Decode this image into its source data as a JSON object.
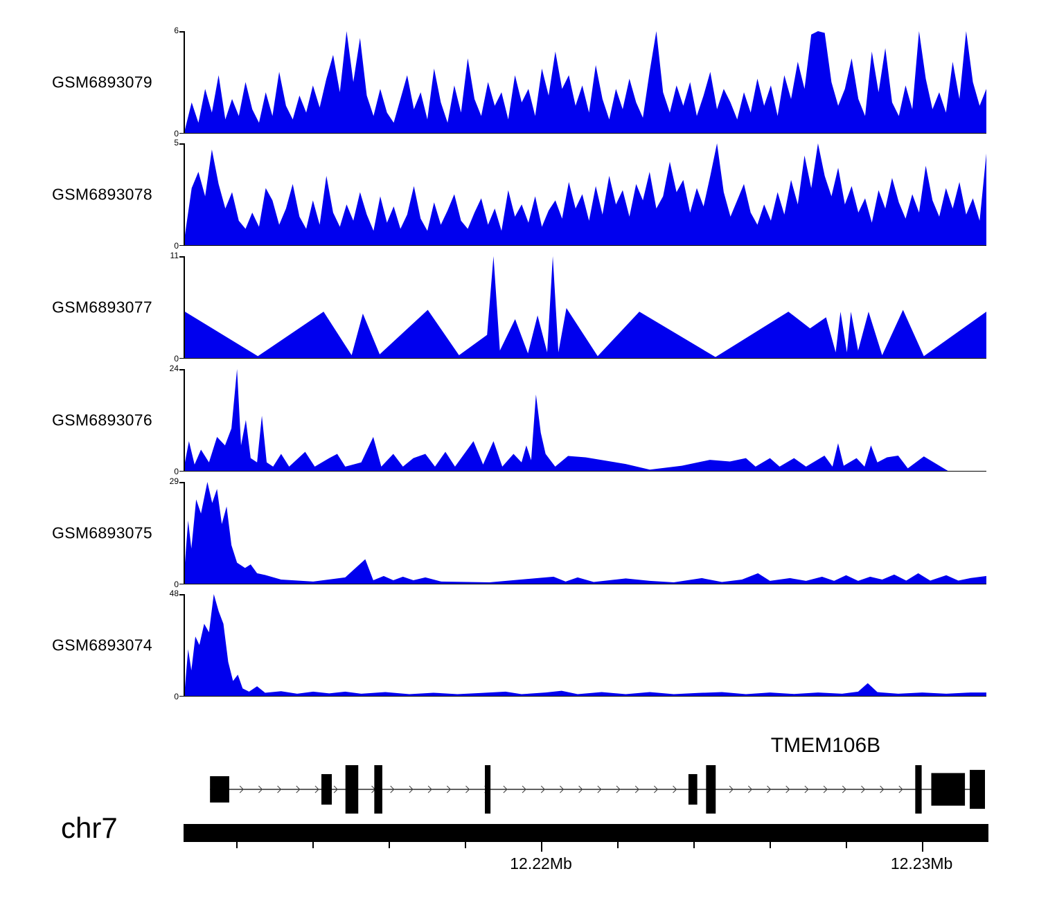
{
  "style": {
    "fill_color": "#0000EE",
    "axis_color": "#000000",
    "gene_color": "#000000",
    "intron_arrow_color": "#444444",
    "background": "#ffffff"
  },
  "chart_data": {
    "type": "area",
    "title": "",
    "xlabel": "",
    "ylabel": "",
    "legend": false,
    "grid": false,
    "region": {
      "chromosome": "chr7",
      "x_range_mb": [
        12.211,
        12.232
      ],
      "ticks": [
        {
          "pos": 0.066
        },
        {
          "pos": 0.161
        },
        {
          "pos": 0.256
        },
        {
          "pos": 0.351
        },
        {
          "pos": 0.446,
          "label": "12.22Mb"
        },
        {
          "pos": 0.541
        },
        {
          "pos": 0.636
        },
        {
          "pos": 0.731
        },
        {
          "pos": 0.826
        },
        {
          "pos": 0.921,
          "label": "12.23Mb"
        }
      ]
    },
    "tracks": [
      {
        "label": "GSM6893079",
        "ymin": 0,
        "ymax": 6,
        "values": [
          0.2,
          1.8,
          0.6,
          2.6,
          1.2,
          3.4,
          0.8,
          2.0,
          1.0,
          3.0,
          1.4,
          0.6,
          2.4,
          1.0,
          3.6,
          1.6,
          0.8,
          2.2,
          1.2,
          2.8,
          1.5,
          3.2,
          4.6,
          2.4,
          6.0,
          3.0,
          5.6,
          2.2,
          1.0,
          2.6,
          1.2,
          0.6,
          2.0,
          3.4,
          1.4,
          2.4,
          0.8,
          3.8,
          1.8,
          0.6,
          2.8,
          1.2,
          4.4,
          2.0,
          1.0,
          3.0,
          1.6,
          2.4,
          0.8,
          3.4,
          1.8,
          2.6,
          1.0,
          3.8,
          2.2,
          4.8,
          2.6,
          3.4,
          1.6,
          2.8,
          1.2,
          4.0,
          2.0,
          0.8,
          2.6,
          1.4,
          3.2,
          1.8,
          0.9,
          3.6,
          6.0,
          2.4,
          1.2,
          2.8,
          1.6,
          3.0,
          1.0,
          2.2,
          3.6,
          1.4,
          2.6,
          1.8,
          0.8,
          2.4,
          1.2,
          3.2,
          1.6,
          2.8,
          1.0,
          3.4,
          2.0,
          4.2,
          2.6,
          5.8,
          6.0,
          5.9,
          3.0,
          1.6,
          2.6,
          4.4,
          2.0,
          1.0,
          4.8,
          2.4,
          5.0,
          1.8,
          1.0,
          2.8,
          1.4,
          6.0,
          3.2,
          1.4,
          2.4,
          1.2,
          4.2,
          2.0,
          6.0,
          3.0,
          1.6,
          2.6
        ]
      },
      {
        "label": "GSM6893078",
        "ymin": 0,
        "ymax": 5,
        "values": [
          0.5,
          2.8,
          3.6,
          2.4,
          4.7,
          3.0,
          1.8,
          2.6,
          1.2,
          0.8,
          1.6,
          0.9,
          2.8,
          2.2,
          1.0,
          1.8,
          3.0,
          1.4,
          0.8,
          2.2,
          1.0,
          3.4,
          1.6,
          0.9,
          2.0,
          1.2,
          2.6,
          1.5,
          0.7,
          2.4,
          1.1,
          1.9,
          0.8,
          1.5,
          2.9,
          1.3,
          0.7,
          2.1,
          1.0,
          1.7,
          2.5,
          1.2,
          0.8,
          1.6,
          2.3,
          1.0,
          1.8,
          0.7,
          2.7,
          1.4,
          2.0,
          1.1,
          2.4,
          0.9,
          1.7,
          2.2,
          1.3,
          3.1,
          1.8,
          2.5,
          1.2,
          2.9,
          1.5,
          3.4,
          2.0,
          2.7,
          1.4,
          3.0,
          2.2,
          3.6,
          1.8,
          2.4,
          4.1,
          2.6,
          3.2,
          1.6,
          2.8,
          1.9,
          3.4,
          5.0,
          2.6,
          1.4,
          2.2,
          3.0,
          1.6,
          1.0,
          2.0,
          1.2,
          2.6,
          1.5,
          3.2,
          2.0,
          4.4,
          2.8,
          5.0,
          3.4,
          2.4,
          3.8,
          2.0,
          2.9,
          1.6,
          2.3,
          1.1,
          2.7,
          1.8,
          3.3,
          2.1,
          1.3,
          2.5,
          1.6,
          3.9,
          2.2,
          1.4,
          2.8,
          1.8,
          3.1,
          1.5,
          2.3,
          1.2,
          4.5
        ]
      },
      {
        "label": "GSM6893077",
        "ymin": 0,
        "ymax": 11,
        "points": [
          [
            0,
            5
          ],
          [
            0.091,
            0.2
          ],
          [
            0.173,
            5
          ],
          [
            0.208,
            0.3
          ],
          [
            0.222,
            4.8
          ],
          [
            0.243,
            0.4
          ],
          [
            0.303,
            5.2
          ],
          [
            0.342,
            0.3
          ],
          [
            0.377,
            2.5
          ],
          [
            0.385,
            11
          ],
          [
            0.393,
            0.8
          ],
          [
            0.412,
            4.2
          ],
          [
            0.428,
            0.5
          ],
          [
            0.44,
            4.6
          ],
          [
            0.452,
            0.6
          ],
          [
            0.459,
            11
          ],
          [
            0.466,
            0.6
          ],
          [
            0.476,
            5.4
          ],
          [
            0.515,
            0.2
          ],
          [
            0.567,
            5
          ],
          [
            0.662,
            0.1
          ],
          [
            0.753,
            5
          ],
          [
            0.78,
            3.2
          ],
          [
            0.8,
            4.4
          ],
          [
            0.812,
            0.6
          ],
          [
            0.818,
            5
          ],
          [
            0.826,
            0.6
          ],
          [
            0.831,
            5
          ],
          [
            0.84,
            0.8
          ],
          [
            0.853,
            5
          ],
          [
            0.87,
            0.3
          ],
          [
            0.896,
            5.2
          ],
          [
            0.922,
            0.2
          ],
          [
            1,
            5
          ]
        ]
      },
      {
        "label": "GSM6893076",
        "ymin": 0,
        "ymax": 24,
        "points": [
          [
            0,
            2
          ],
          [
            0.005,
            7
          ],
          [
            0.012,
            1.5
          ],
          [
            0.02,
            5
          ],
          [
            0.03,
            2
          ],
          [
            0.04,
            8
          ],
          [
            0.05,
            6
          ],
          [
            0.058,
            10
          ],
          [
            0.065,
            24
          ],
          [
            0.07,
            6
          ],
          [
            0.076,
            12
          ],
          [
            0.082,
            3
          ],
          [
            0.09,
            2
          ],
          [
            0.096,
            13
          ],
          [
            0.102,
            2
          ],
          [
            0.11,
            1
          ],
          [
            0.12,
            4
          ],
          [
            0.13,
            1
          ],
          [
            0.15,
            4.5
          ],
          [
            0.162,
            1
          ],
          [
            0.18,
            3
          ],
          [
            0.19,
            4
          ],
          [
            0.2,
            1
          ],
          [
            0.22,
            2
          ],
          [
            0.235,
            8
          ],
          [
            0.245,
            1
          ],
          [
            0.26,
            4
          ],
          [
            0.272,
            1
          ],
          [
            0.285,
            3
          ],
          [
            0.3,
            4
          ],
          [
            0.312,
            1
          ],
          [
            0.325,
            4.5
          ],
          [
            0.337,
            1
          ],
          [
            0.36,
            7
          ],
          [
            0.372,
            1.5
          ],
          [
            0.385,
            7
          ],
          [
            0.396,
            1
          ],
          [
            0.41,
            4
          ],
          [
            0.42,
            2
          ],
          [
            0.426,
            6
          ],
          [
            0.432,
            2.5
          ],
          [
            0.438,
            18
          ],
          [
            0.444,
            9
          ],
          [
            0.45,
            4
          ],
          [
            0.462,
            1
          ],
          [
            0.478,
            3.5
          ],
          [
            0.5,
            3.2
          ],
          [
            0.55,
            1.6
          ],
          [
            0.58,
            0.3
          ],
          [
            0.62,
            1.2
          ],
          [
            0.655,
            2.6
          ],
          [
            0.68,
            2.2
          ],
          [
            0.7,
            3
          ],
          [
            0.712,
            1
          ],
          [
            0.73,
            3
          ],
          [
            0.742,
            1
          ],
          [
            0.76,
            3
          ],
          [
            0.775,
            1
          ],
          [
            0.798,
            3.6
          ],
          [
            0.808,
            1
          ],
          [
            0.815,
            6.5
          ],
          [
            0.822,
            1.2
          ],
          [
            0.838,
            3
          ],
          [
            0.848,
            1
          ],
          [
            0.856,
            6
          ],
          [
            0.864,
            2
          ],
          [
            0.876,
            3.2
          ],
          [
            0.89,
            3.6
          ],
          [
            0.902,
            0.6
          ],
          [
            0.922,
            3.4
          ],
          [
            0.952,
            0
          ],
          [
            1,
            0
          ]
        ]
      },
      {
        "label": "GSM6893075",
        "ymin": 0,
        "ymax": 29,
        "points": [
          [
            0,
            6
          ],
          [
            0.004,
            18
          ],
          [
            0.008,
            10
          ],
          [
            0.014,
            24
          ],
          [
            0.02,
            20
          ],
          [
            0.028,
            29
          ],
          [
            0.034,
            23
          ],
          [
            0.04,
            27
          ],
          [
            0.046,
            17
          ],
          [
            0.052,
            22
          ],
          [
            0.058,
            11
          ],
          [
            0.065,
            6
          ],
          [
            0.075,
            4.5
          ],
          [
            0.082,
            5.5
          ],
          [
            0.09,
            3
          ],
          [
            0.1,
            2.5
          ],
          [
            0.12,
            1.2
          ],
          [
            0.16,
            0.6
          ],
          [
            0.2,
            1.8
          ],
          [
            0.225,
            7
          ],
          [
            0.235,
            1
          ],
          [
            0.248,
            2.2
          ],
          [
            0.26,
            1
          ],
          [
            0.272,
            2
          ],
          [
            0.285,
            1
          ],
          [
            0.3,
            1.8
          ],
          [
            0.32,
            0.6
          ],
          [
            0.38,
            0.4
          ],
          [
            0.44,
            1.6
          ],
          [
            0.46,
            2
          ],
          [
            0.475,
            0.6
          ],
          [
            0.49,
            1.8
          ],
          [
            0.51,
            0.5
          ],
          [
            0.55,
            1.5
          ],
          [
            0.58,
            0.8
          ],
          [
            0.61,
            0.4
          ],
          [
            0.645,
            1.6
          ],
          [
            0.67,
            0.5
          ],
          [
            0.695,
            1.2
          ],
          [
            0.715,
            3
          ],
          [
            0.73,
            0.8
          ],
          [
            0.755,
            1.6
          ],
          [
            0.775,
            0.8
          ],
          [
            0.795,
            2
          ],
          [
            0.81,
            0.8
          ],
          [
            0.825,
            2.4
          ],
          [
            0.84,
            0.8
          ],
          [
            0.855,
            2
          ],
          [
            0.87,
            1.2
          ],
          [
            0.885,
            2.6
          ],
          [
            0.9,
            0.9
          ],
          [
            0.915,
            3
          ],
          [
            0.93,
            0.9
          ],
          [
            0.95,
            2.4
          ],
          [
            0.965,
            0.9
          ],
          [
            0.98,
            1.6
          ],
          [
            1,
            2.2
          ]
        ]
      },
      {
        "label": "GSM6893074",
        "ymin": 0,
        "ymax": 48,
        "points": [
          [
            0,
            4
          ],
          [
            0.004,
            22
          ],
          [
            0.008,
            12
          ],
          [
            0.013,
            28
          ],
          [
            0.018,
            24
          ],
          [
            0.024,
            34
          ],
          [
            0.03,
            30
          ],
          [
            0.036,
            48
          ],
          [
            0.042,
            40
          ],
          [
            0.048,
            34
          ],
          [
            0.054,
            16
          ],
          [
            0.06,
            7
          ],
          [
            0.066,
            10
          ],
          [
            0.072,
            3.5
          ],
          [
            0.08,
            2
          ],
          [
            0.09,
            4.5
          ],
          [
            0.1,
            1.5
          ],
          [
            0.12,
            2.2
          ],
          [
            0.14,
            1
          ],
          [
            0.16,
            2
          ],
          [
            0.18,
            1.2
          ],
          [
            0.2,
            2
          ],
          [
            0.22,
            1
          ],
          [
            0.25,
            1.8
          ],
          [
            0.28,
            0.8
          ],
          [
            0.31,
            1.5
          ],
          [
            0.34,
            0.8
          ],
          [
            0.37,
            1.4
          ],
          [
            0.4,
            2
          ],
          [
            0.42,
            0.8
          ],
          [
            0.45,
            1.6
          ],
          [
            0.47,
            2.4
          ],
          [
            0.49,
            0.8
          ],
          [
            0.52,
            1.8
          ],
          [
            0.55,
            0.8
          ],
          [
            0.58,
            1.8
          ],
          [
            0.61,
            0.8
          ],
          [
            0.64,
            1.4
          ],
          [
            0.67,
            1.8
          ],
          [
            0.7,
            0.8
          ],
          [
            0.73,
            1.6
          ],
          [
            0.76,
            0.9
          ],
          [
            0.79,
            1.6
          ],
          [
            0.82,
            1
          ],
          [
            0.84,
            2
          ],
          [
            0.852,
            6
          ],
          [
            0.864,
            1.8
          ],
          [
            0.89,
            1
          ],
          [
            0.92,
            1.6
          ],
          [
            0.95,
            1
          ],
          [
            0.98,
            1.6
          ],
          [
            1,
            1.6
          ]
        ]
      }
    ],
    "gene": {
      "name": "TMEM106B",
      "strand": "right",
      "line_start": 0.033,
      "line_end": 1.0,
      "exons": [
        {
          "start": 0.033,
          "width": 0.024,
          "height": 0.5
        },
        {
          "start": 0.172,
          "width": 0.013,
          "height": 0.58
        },
        {
          "start": 0.202,
          "width": 0.016,
          "height": 0.92
        },
        {
          "start": 0.238,
          "width": 0.01,
          "height": 0.92
        },
        {
          "start": 0.376,
          "width": 0.007,
          "height": 0.92
        },
        {
          "start": 0.63,
          "width": 0.011,
          "height": 0.58
        },
        {
          "start": 0.652,
          "width": 0.012,
          "height": 0.92
        },
        {
          "start": 0.913,
          "width": 0.008,
          "height": 0.92
        },
        {
          "start": 0.933,
          "width": 0.042,
          "height": 0.62
        },
        {
          "start": 0.981,
          "width": 0.019,
          "height": 0.74
        }
      ]
    }
  }
}
